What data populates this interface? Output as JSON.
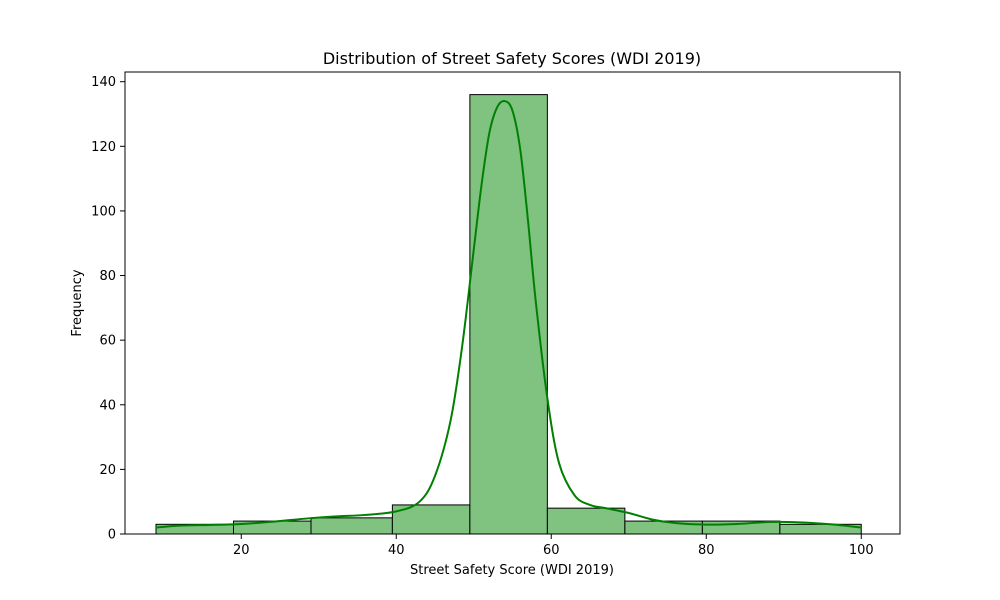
{
  "chart_data": {
    "type": "bar",
    "subtype": "histogram",
    "title": "Distribution of Street Safety Scores (WDI 2019)",
    "xlabel": "Street Safety Score (WDI 2019)",
    "ylabel": "Frequency",
    "xlim": [
      5,
      105
    ],
    "ylim": [
      0,
      143
    ],
    "xticks": [
      20,
      40,
      60,
      80,
      100
    ],
    "yticks": [
      0,
      20,
      40,
      60,
      80,
      100,
      120,
      140
    ],
    "grid": false,
    "legend": "none",
    "bins": [
      {
        "x0": 9,
        "x1": 19,
        "count": 3
      },
      {
        "x0": 19,
        "x1": 29,
        "count": 4
      },
      {
        "x0": 29,
        "x1": 39.5,
        "count": 5
      },
      {
        "x0": 39.5,
        "x1": 49.5,
        "count": 9
      },
      {
        "x0": 49.5,
        "x1": 59.5,
        "count": 136
      },
      {
        "x0": 59.5,
        "x1": 69.5,
        "count": 8
      },
      {
        "x0": 69.5,
        "x1": 79.5,
        "count": 4
      },
      {
        "x0": 79.5,
        "x1": 89.5,
        "count": 4
      },
      {
        "x0": 89.5,
        "x1": 100,
        "count": 3
      }
    ],
    "kde": {
      "x": [
        9,
        12,
        16,
        20,
        24,
        28,
        32,
        36,
        40,
        43,
        45,
        47,
        48.5,
        50,
        51,
        52,
        53,
        54,
        55,
        56,
        57,
        58,
        59.5,
        61,
        63,
        65,
        67,
        70,
        73,
        76,
        80,
        84,
        88,
        92,
        96,
        100
      ],
      "y": [
        2,
        2.6,
        2.8,
        3.1,
        3.8,
        4.7,
        5.4,
        5.9,
        7,
        10,
        18,
        35,
        58,
        88,
        108,
        124,
        132,
        134,
        131,
        119,
        97,
        72,
        42,
        22,
        12,
        9,
        8,
        6.5,
        4.5,
        3.4,
        2.9,
        3.1,
        3.7,
        3.6,
        3,
        2
      ]
    },
    "colors": {
      "bar_fill": "#80c280",
      "bar_edge": "#000000",
      "kde_line": "#008000"
    }
  }
}
